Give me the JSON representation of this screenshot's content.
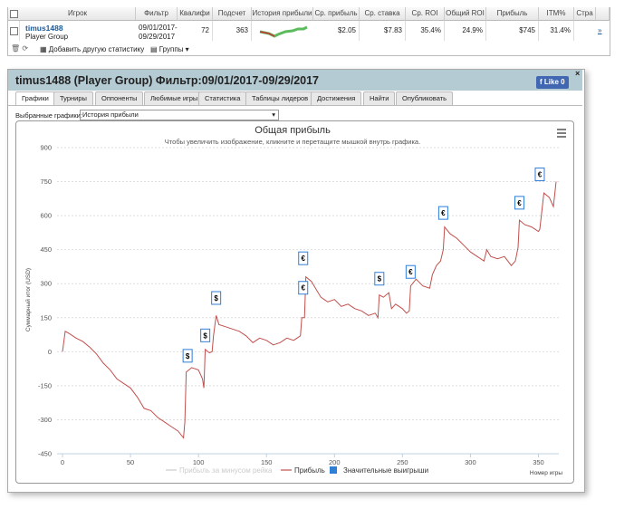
{
  "table": {
    "headers": [
      "Игрок",
      "Фильтр",
      "Квалифи",
      "Подсчет",
      "История прибыли",
      "Ср. прибыль",
      "Ср. ставка",
      "Ср. ROI",
      "Общий ROI",
      "Прибыль",
      "ITM%",
      "Стра"
    ],
    "row": {
      "player": "timus1488",
      "group": "Player Group",
      "filter_from": "09/01/2017-",
      "filter_to": "09/29/2017",
      "cells": [
        "72",
        "363",
        "$2.05",
        "$7.83",
        "35.4%",
        "24.9%",
        "$745",
        "31.4%"
      ],
      "link": "»"
    }
  },
  "toolbar": {
    "add_stat": "Добавить другую статистику",
    "groups": "Группы"
  },
  "dialog": {
    "title": "timus1488 (Player Group) Фильтр:09/01/2017-09/29/2017",
    "like": "Like",
    "like_count": "0",
    "tabs": [
      "Графики",
      "Турниры",
      "Оппоненты",
      "Любимые игры",
      "Статистика",
      "Таблицы лидеров",
      "Достижения",
      "Найти",
      "Опубликовать"
    ],
    "selector_label": "Выбранные графики:",
    "selector_value": "История прибыли"
  },
  "chart_data": {
    "type": "line",
    "title": "Общая прибыль",
    "subtitle": "Чтобы увеличить изображение, кликните и перетащите мышкой внутрь графика.",
    "y_label": "Суммарный итог (USD)",
    "x_label": "Номер игры",
    "xlim": [
      -4,
      365
    ],
    "xticks": [
      0,
      50,
      100,
      150,
      200,
      250,
      300,
      350
    ],
    "ylim": [
      -450,
      900
    ],
    "yticks": [
      -450,
      -300,
      -150,
      0,
      150,
      300,
      450,
      600,
      750,
      900
    ],
    "grid": true,
    "series": [
      {
        "name": "Прибыль за минусом рейка",
        "color": "#cccccc",
        "hidden": true,
        "x": [],
        "values": []
      },
      {
        "name": "Прибыль",
        "color": "#c0504d",
        "x": [
          0,
          2,
          5,
          10,
          15,
          20,
          25,
          30,
          35,
          40,
          45,
          50,
          55,
          60,
          65,
          70,
          75,
          80,
          85,
          89,
          90,
          91,
          95,
          100,
          103,
          104,
          105,
          108,
          110,
          111,
          113,
          115,
          120,
          125,
          130,
          135,
          140,
          145,
          150,
          155,
          160,
          165,
          170,
          175,
          176,
          178,
          179,
          183,
          190,
          195,
          200,
          205,
          210,
          215,
          220,
          225,
          230,
          232,
          233,
          236,
          240,
          242,
          245,
          250,
          253,
          255,
          256,
          260,
          265,
          270,
          272,
          275,
          278,
          280,
          281,
          285,
          290,
          295,
          300,
          305,
          310,
          312,
          315,
          320,
          325,
          330,
          333,
          335,
          336,
          340,
          345,
          350,
          351,
          354,
          358,
          361,
          363
        ],
        "values": [
          0,
          90,
          80,
          60,
          45,
          20,
          -10,
          -50,
          -80,
          -120,
          -140,
          -160,
          -200,
          -250,
          -260,
          -290,
          -310,
          -330,
          -350,
          -380,
          -310,
          -90,
          -70,
          -80,
          -120,
          -160,
          10,
          -5,
          0,
          70,
          160,
          120,
          110,
          100,
          90,
          70,
          40,
          60,
          50,
          30,
          40,
          60,
          50,
          70,
          150,
          150,
          330,
          310,
          240,
          220,
          230,
          200,
          210,
          190,
          180,
          160,
          170,
          150,
          250,
          240,
          260,
          190,
          210,
          190,
          170,
          180,
          290,
          320,
          290,
          280,
          340,
          380,
          400,
          450,
          550,
          520,
          500,
          470,
          440,
          420,
          400,
          450,
          420,
          410,
          420,
          380,
          400,
          460,
          580,
          560,
          550,
          530,
          540,
          700,
          680,
          640,
          750
        ]
      },
      {
        "name": "Значительные выигрыши",
        "color": "#2f7ed8",
        "x": [
          92,
          105,
          113,
          177,
          177,
          233,
          256,
          280,
          336,
          351
        ],
        "values": [
          -50,
          40,
          205,
          250,
          380,
          290,
          320,
          580,
          625,
          750
        ],
        "symbols": [
          "$",
          "$",
          "$",
          "€",
          "€",
          "$",
          "€",
          "€",
          "€",
          "€"
        ]
      }
    ]
  }
}
